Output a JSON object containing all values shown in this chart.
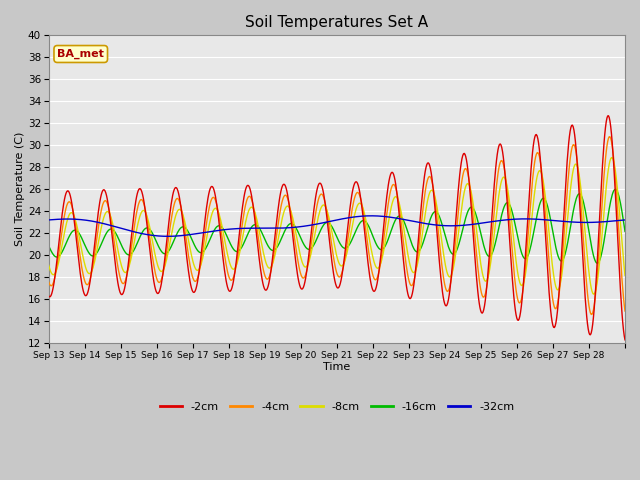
{
  "title": "Soil Temperatures Set A",
  "xlabel": "Time",
  "ylabel": "Soil Temperature (C)",
  "ylim": [
    12,
    40
  ],
  "yticks": [
    12,
    14,
    16,
    18,
    20,
    22,
    24,
    26,
    28,
    30,
    32,
    34,
    36,
    38,
    40
  ],
  "xlabels": [
    "Sep 13",
    "Sep 14",
    "Sep 15",
    "Sep 16",
    "Sep 17",
    "Sep 18",
    "Sep 19",
    "Sep 20",
    "Sep 21",
    "Sep 22",
    "Sep 23",
    "Sep 24",
    "Sep 25",
    "Sep 26",
    "Sep 27",
    "Sep 28"
  ],
  "annotation_text": "BA_met",
  "annotation_bg": "#ffffcc",
  "annotation_border": "#cc9900",
  "annotation_fg": "#aa0000",
  "series_colors": [
    "#dd0000",
    "#ff8800",
    "#dddd00",
    "#00bb00",
    "#0000cc"
  ],
  "series_labels": [
    "-2cm",
    "-4cm",
    "-8cm",
    "-16cm",
    "-32cm"
  ],
  "plot_bg": "#e8e8e8",
  "fig_bg": "#c8c8c8",
  "grid_color": "#ffffff",
  "n_days": 16,
  "pts_per_day": 48
}
